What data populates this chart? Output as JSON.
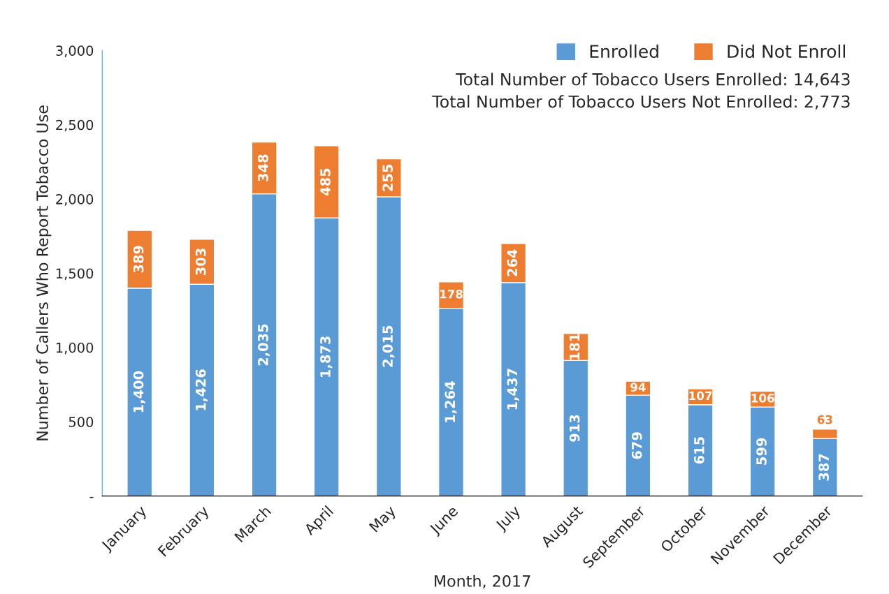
{
  "chart_data": {
    "type": "bar",
    "stacked": true,
    "xlabel": "Month, 2017",
    "ylabel": "Number of Callers Who Report Tobacco Use",
    "categories": [
      "January",
      "February",
      "March",
      "April",
      "May",
      "June",
      "July",
      "August",
      "September",
      "October",
      "November",
      "December"
    ],
    "series": [
      {
        "name": "Enrolled",
        "color": "#5b9bd5",
        "values": [
          1400,
          1426,
          2035,
          1873,
          2015,
          1264,
          1437,
          913,
          679,
          615,
          599,
          387
        ],
        "value_labels": [
          "1,400",
          "1,426",
          "2,035",
          "1,873",
          "2,015",
          "1,264",
          "1,437",
          "913",
          "679",
          "615",
          "599",
          "387"
        ]
      },
      {
        "name": "Did Not Enroll",
        "color": "#ed7d31",
        "values": [
          389,
          303,
          348,
          485,
          255,
          178,
          264,
          181,
          94,
          107,
          106,
          63
        ],
        "value_labels": [
          "389",
          "303",
          "348",
          "485",
          "255",
          "178",
          "264",
          "181",
          "94",
          "107",
          "106",
          "63"
        ]
      }
    ],
    "ylim": [
      0,
      3000
    ],
    "yticks": [
      {
        "value": 0,
        "label": "-"
      },
      {
        "value": 500,
        "label": "500"
      },
      {
        "value": 1000,
        "label": "1,000"
      },
      {
        "value": 1500,
        "label": "1,500"
      },
      {
        "value": 2000,
        "label": "2,000"
      },
      {
        "value": 2500,
        "label": "2,500"
      },
      {
        "value": 3000,
        "label": "3,000"
      }
    ],
    "legend": "top right",
    "grid": false,
    "annotations": [
      "Total Number of Tobacco Users Enrolled: 14,643",
      "Total Number of Tobacco Users Not Enrolled: 2,773"
    ]
  }
}
